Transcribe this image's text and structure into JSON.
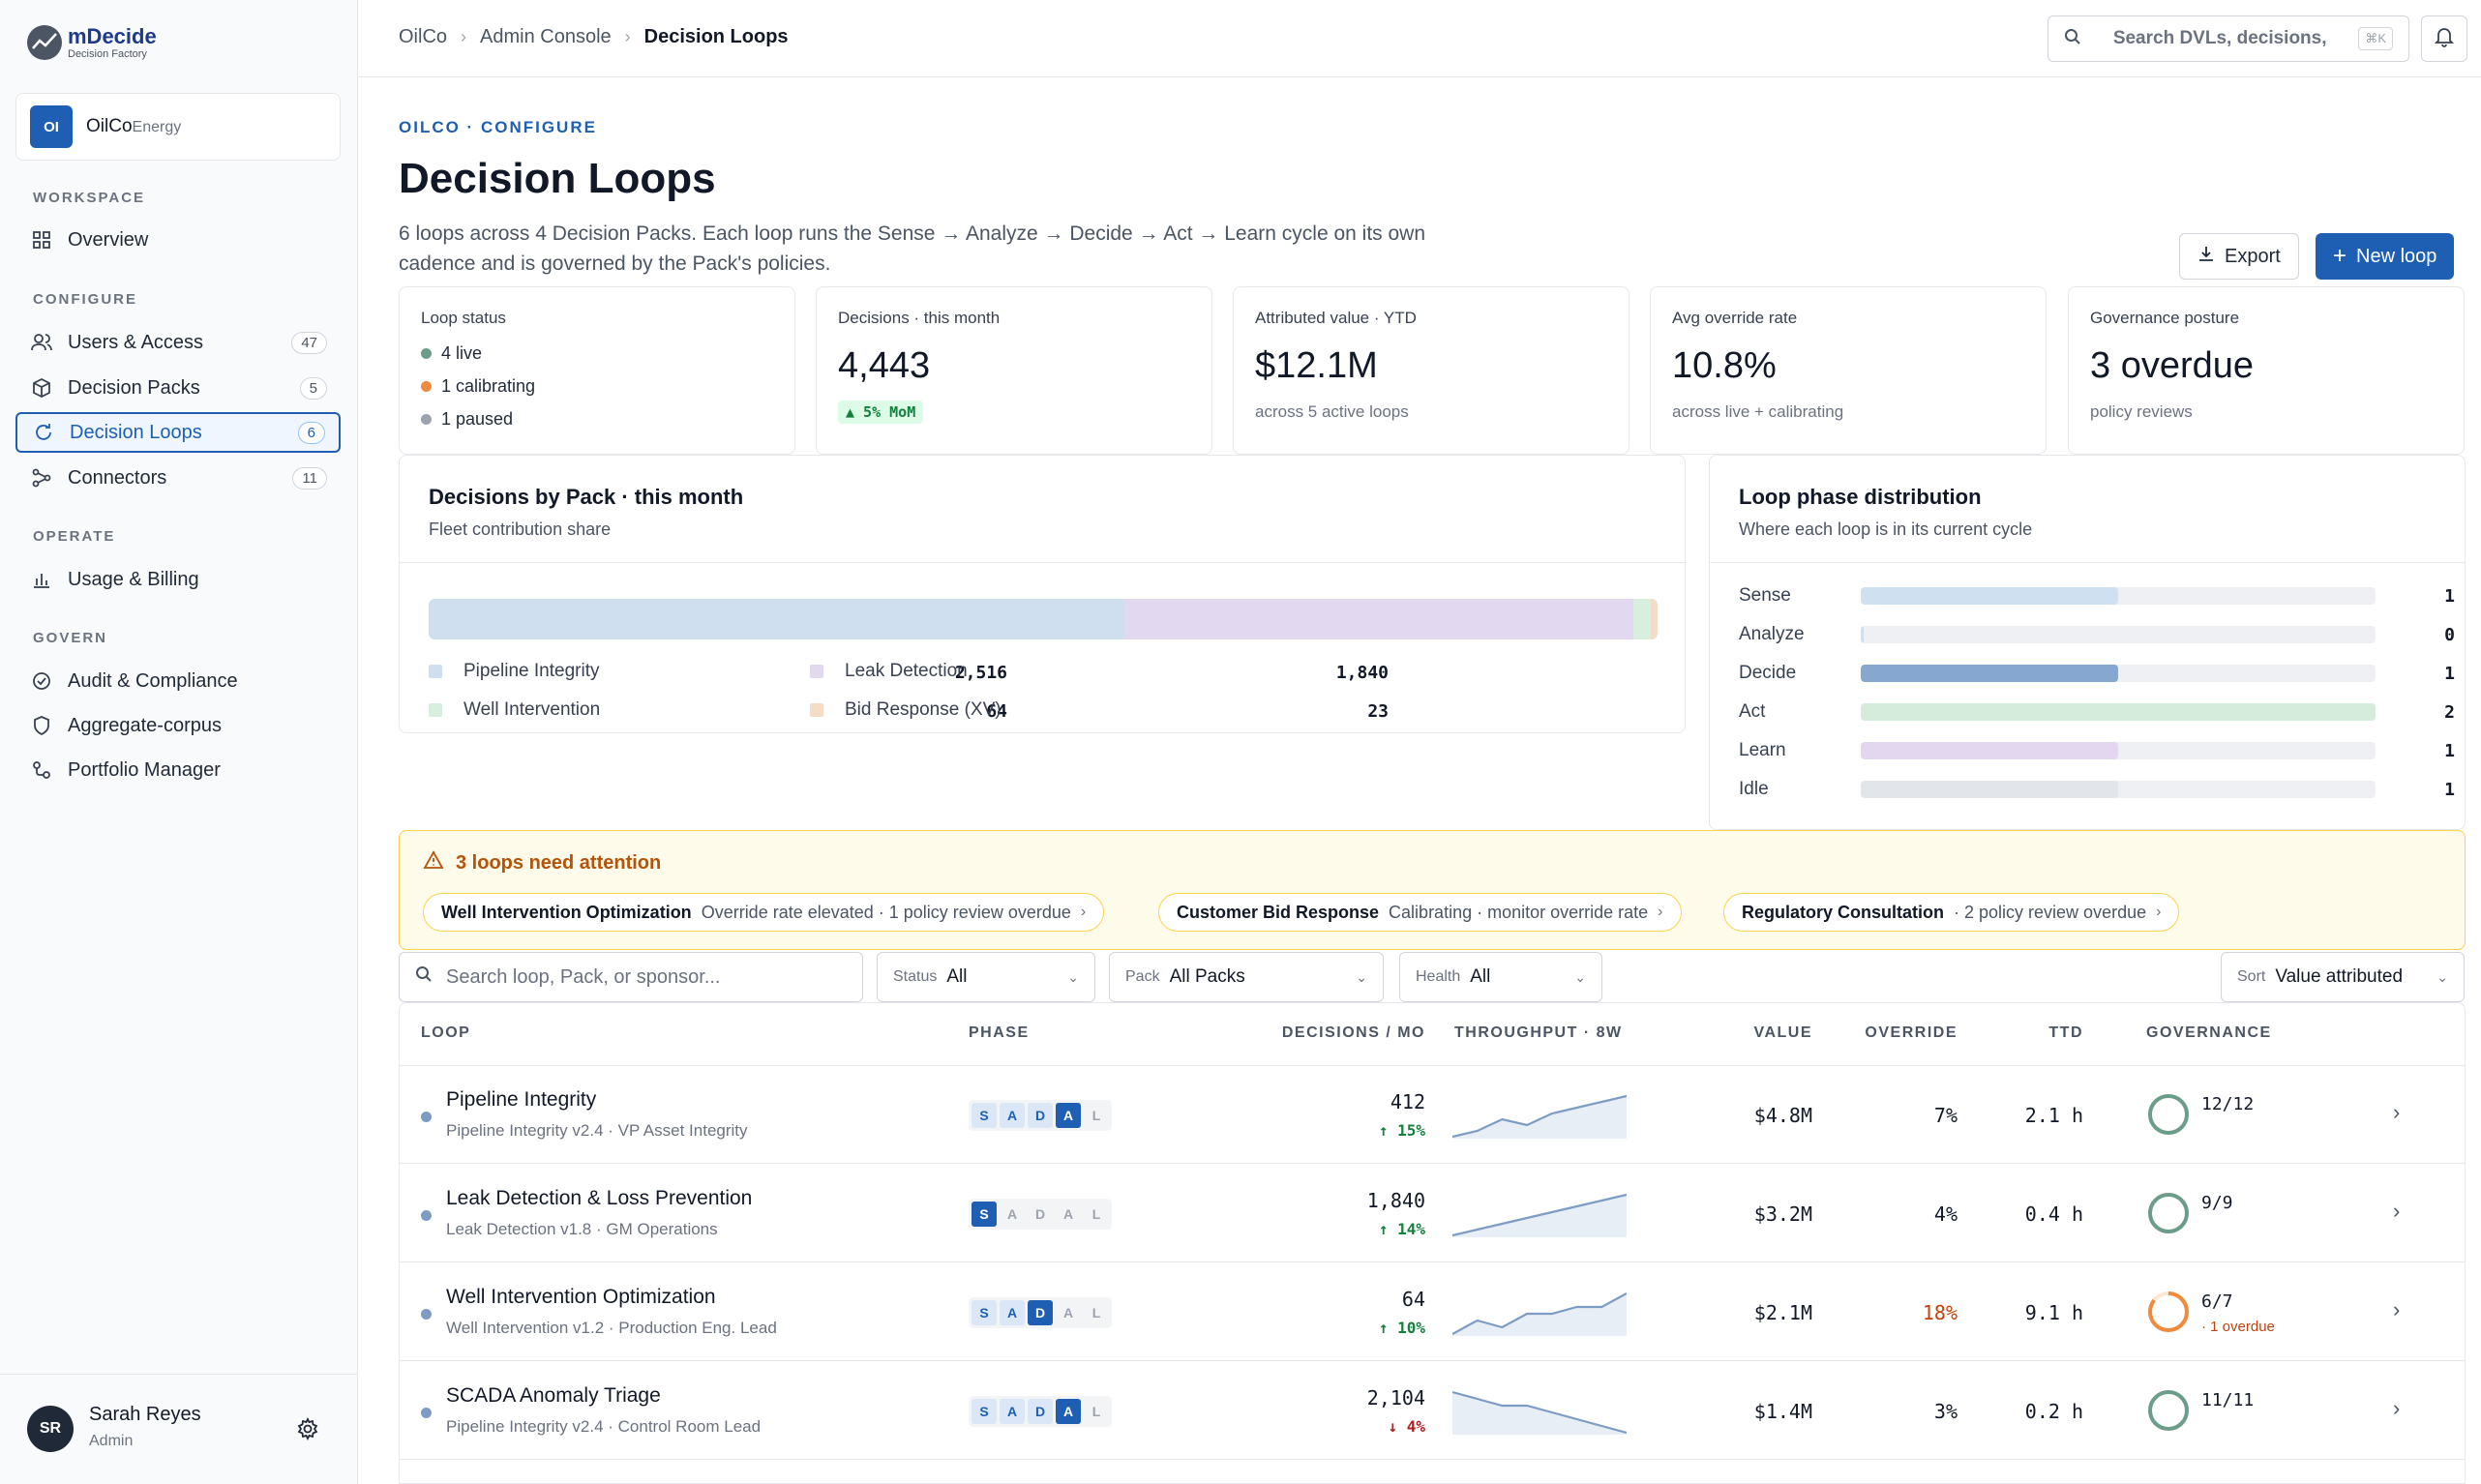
{
  "brand": {
    "name": "mDecide",
    "tagline": "Decision Factory"
  },
  "org": {
    "badge": "OI",
    "name": "OilCo",
    "suffix": "Energy"
  },
  "nav": {
    "sections": {
      "workspace": "WORKSPACE",
      "configure": "CONFIGURE",
      "operate": "OPERATE",
      "govern": "GOVERN"
    },
    "items": [
      {
        "label": "Overview",
        "icon": "grid-icon"
      },
      {
        "label": "Users & Access",
        "count": "47",
        "icon": "users-icon"
      },
      {
        "label": "Decision Packs",
        "count": "5",
        "icon": "cube-icon"
      },
      {
        "label": "Decision Loops",
        "count": "6",
        "icon": "loop-icon",
        "active": true
      },
      {
        "label": "Connectors",
        "count": "11",
        "icon": "connector-icon"
      },
      {
        "label": "Usage & Billing",
        "icon": "bar-chart-icon"
      },
      {
        "label": "Audit & Compliance",
        "icon": "check-circle-icon"
      },
      {
        "label": "Aggregate-corpus",
        "icon": "shield-icon"
      },
      {
        "label": "Portfolio Manager",
        "icon": "portfolio-icon"
      }
    ]
  },
  "user": {
    "initials": "SR",
    "name": "Sarah Reyes",
    "role": "Admin"
  },
  "breadcrumb": [
    "OilCo",
    "Admin Console",
    "Decision Loops"
  ],
  "search": {
    "placeholder": "Search DVLs, decisions,",
    "shortcut": "⌘K"
  },
  "header": {
    "eyebrow": "OILCO · CONFIGURE",
    "title": "Decision Loops",
    "description": "6 loops across 4 Decision Packs. Each loop runs the Sense → Analyze → Decide → Act → Learn cycle on its own cadence and is governed by the Pack's policies.",
    "export_label": "Export",
    "new_label": "New loop"
  },
  "kpis": {
    "status": {
      "label": "Loop status",
      "rows": [
        {
          "text": "4 live",
          "color": "#6b9e8a"
        },
        {
          "text": "1 calibrating",
          "color": "#f08a3c"
        },
        {
          "text": "1 paused",
          "color": "#9ca3af"
        }
      ]
    },
    "decisions": {
      "label": "Decisions · this month",
      "value": "4,443",
      "badge": "▲ 5% MoM"
    },
    "value": {
      "label": "Attributed value · YTD",
      "value": "$12.1M",
      "sub": "across 5 active loops"
    },
    "override": {
      "label": "Avg override rate",
      "value": "10.8%",
      "sub": "across live + calibrating"
    },
    "governance": {
      "label": "Governance posture",
      "value": "3 overdue",
      "sub": "policy reviews"
    }
  },
  "pack_chart": {
    "title": "Decisions by Pack · this month",
    "subtitle": "Fleet contribution share",
    "packs": [
      {
        "name": "Pipeline Integrity",
        "value": 2516,
        "display": "2,516",
        "color": "#cfdff0"
      },
      {
        "name": "Leak Detection",
        "value": 1840,
        "display": "1,840",
        "color": "#e2d9f0"
      },
      {
        "name": "Well Intervention",
        "value": 64,
        "display": "64",
        "color": "#d8eede"
      },
      {
        "name": "Bid Response (XV)",
        "value": 23,
        "display": "23",
        "color": "#f6dcc7"
      }
    ]
  },
  "phase_chart": {
    "title": "Loop phase distribution",
    "subtitle": "Where each loop is in its current cycle",
    "max": 2,
    "phases": [
      {
        "name": "Sense",
        "count": 1,
        "display": "1",
        "color": "#cfe0f0"
      },
      {
        "name": "Analyze",
        "count": 0,
        "display": "0",
        "color": "#cfe0f0"
      },
      {
        "name": "Decide",
        "count": 1,
        "display": "1",
        "color": "#86a7cf"
      },
      {
        "name": "Act",
        "count": 2,
        "display": "2",
        "color": "#d5ebdc"
      },
      {
        "name": "Learn",
        "count": 1,
        "display": "1",
        "color": "#e3d6ef"
      },
      {
        "name": "Idle",
        "count": 1,
        "display": "1",
        "color": "#e2e5ea"
      }
    ]
  },
  "attention": {
    "title": "3 loops need attention",
    "items": [
      {
        "name": "Well Intervention Optimization",
        "note": "Override rate elevated · 1 policy review overdue"
      },
      {
        "name": "Customer Bid Response",
        "note": "Calibrating · monitor override rate"
      },
      {
        "name": "Regulatory Consultation",
        "note": "· 2 policy review overdue"
      }
    ]
  },
  "filters": {
    "search_placeholder": "Search loop, Pack, or sponsor...",
    "status": {
      "label": "Status",
      "value": "All"
    },
    "pack": {
      "label": "Pack",
      "value": "All Packs"
    },
    "health": {
      "label": "Health",
      "value": "All"
    },
    "sort": {
      "label": "Sort",
      "value": "Value attributed"
    }
  },
  "table": {
    "headers": {
      "loop": "LOOP",
      "phase": "PHASE",
      "decisions": "DECISIONS / MO",
      "throughput": "THROUGHPUT · 8W",
      "value": "VALUE",
      "override": "OVERRIDE",
      "ttd": "TTD",
      "governance": "GOVERNANCE"
    },
    "phase_letters": [
      "S",
      "A",
      "D",
      "A",
      "L"
    ],
    "rows": [
      {
        "name": "Pipeline Integrity",
        "sub": "Pipeline Integrity v2.4 · VP Asset Integrity",
        "phase_index": 3,
        "decisions": "412",
        "trend": "↑ 15%",
        "trend_dir": "up",
        "spark": [
          2,
          3,
          5,
          4,
          6,
          7,
          8,
          9
        ],
        "value": "$4.8M",
        "override": "7%",
        "override_warn": false,
        "ttd": "2.1 h",
        "gov": "12/12",
        "gov_ok": true,
        "gov_frac": 1,
        "overdue": ""
      },
      {
        "name": "Leak Detection & Loss Prevention",
        "sub": "Leak Detection v1.8 · GM Operations",
        "phase_index": 0,
        "decisions": "1,840",
        "trend": "↑ 14%",
        "trend_dir": "up",
        "spark": [
          2,
          3,
          4,
          5,
          6,
          7,
          8,
          9
        ],
        "value": "$3.2M",
        "override": "4%",
        "override_warn": false,
        "ttd": "0.4 h",
        "gov": "9/9",
        "gov_ok": true,
        "gov_frac": 1,
        "overdue": ""
      },
      {
        "name": "Well Intervention Optimization",
        "sub": "Well Intervention v1.2 · Production Eng. Lead",
        "phase_index": 2,
        "decisions": "64",
        "trend": "↑ 10%",
        "trend_dir": "up",
        "spark": [
          2,
          4,
          3,
          5,
          5,
          6,
          6,
          8
        ],
        "value": "$2.1M",
        "override": "18%",
        "override_warn": true,
        "ttd": "9.1 h",
        "gov": "6/7",
        "gov_ok": false,
        "gov_frac": 0.857,
        "overdue": "· 1 overdue"
      },
      {
        "name": "SCADA Anomaly Triage",
        "sub": "Pipeline Integrity v2.4 · Control Room Lead",
        "phase_index": 3,
        "decisions": "2,104",
        "trend": "↓ 4%",
        "trend_dir": "down",
        "spark": [
          9,
          8,
          7,
          7,
          6,
          5,
          4,
          3
        ],
        "value": "$1.4M",
        "override": "3%",
        "override_warn": false,
        "ttd": "0.2 h",
        "gov": "11/11",
        "gov_ok": true,
        "gov_frac": 1,
        "overdue": ""
      }
    ]
  }
}
